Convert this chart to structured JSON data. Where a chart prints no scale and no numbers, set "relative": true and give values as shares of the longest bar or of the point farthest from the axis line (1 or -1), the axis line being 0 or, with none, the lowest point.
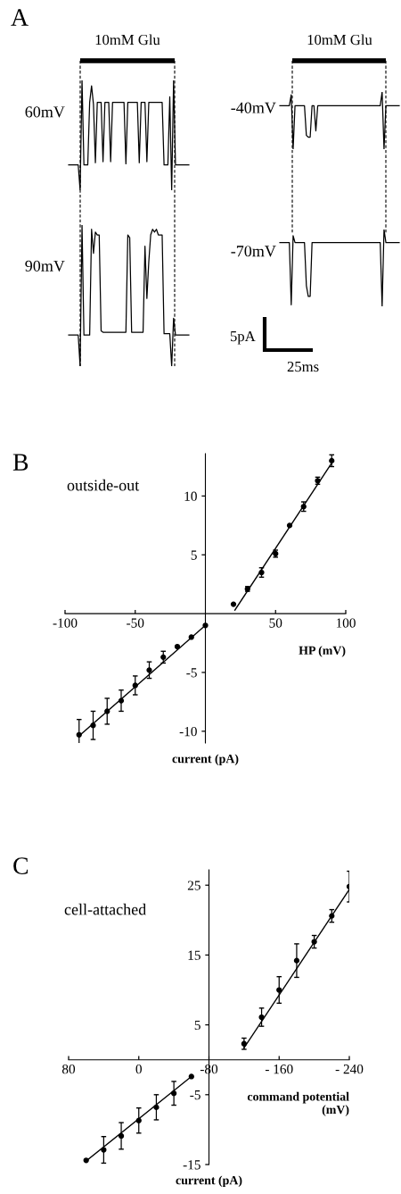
{
  "chart_data": [
    {
      "type": "line",
      "title": "A",
      "relative": true,
      "annotations": [
        "10mM Glu"
      ],
      "categories": [
        null,
        null,
        null,
        null,
        null,
        null,
        null,
        null,
        null,
        null,
        null,
        null,
        null,
        null,
        null,
        null,
        null,
        null,
        null,
        null,
        null,
        null,
        null,
        null,
        null,
        null,
        null,
        null,
        null,
        null,
        null,
        null,
        null,
        null,
        null,
        null,
        null,
        null,
        null,
        null,
        null,
        null,
        null,
        null,
        null,
        null,
        null,
        null,
        null,
        null,
        null,
        null,
        null,
        null,
        null,
        null,
        null,
        null,
        null,
        null,
        null,
        null,
        null,
        null
      ],
      "series": [
        {
          "name": "60mV",
          "color": "#000000",
          "values": [
            0.23,
            0.23,
            0.23,
            0.23,
            0.23,
            0.23,
            0.0,
            1.0,
            0.23,
            0.23,
            0.23,
            0.8,
            0.95,
            0.78,
            0.25,
            0.8,
            0.8,
            0.8,
            0.26,
            0.8,
            0.8,
            0.8,
            0.26,
            0.8,
            0.8,
            0.8,
            0.8,
            0.8,
            0.8,
            0.8,
            0.24,
            0.8,
            0.8,
            0.8,
            0.8,
            0.8,
            0.8,
            0.25,
            0.8,
            0.8,
            0.8,
            0.26,
            0.8,
            0.8,
            0.8,
            0.8,
            0.8,
            0.8,
            0.8,
            0.8,
            0.23,
            0.23,
            0.23,
            0.85,
            0.0,
            1.0,
            0.23,
            0.23,
            0.23,
            0.23,
            0.23,
            0.23,
            0.23,
            0.23
          ]
        }
      ]
    },
    {
      "type": "line",
      "relative": true,
      "categories": [
        null,
        null,
        null,
        null,
        null,
        null,
        null,
        null,
        null,
        null,
        null,
        null,
        null,
        null,
        null,
        null,
        null,
        null,
        null,
        null,
        null,
        null,
        null,
        null,
        null,
        null,
        null,
        null,
        null,
        null,
        null,
        null,
        null,
        null,
        null,
        null,
        null,
        null,
        null,
        null,
        null,
        null,
        null,
        null,
        null,
        null,
        null,
        null,
        null,
        null,
        null,
        null,
        null,
        null,
        null,
        null,
        null,
        null,
        null,
        null,
        null,
        null,
        null,
        null
      ],
      "series": [
        {
          "name": "90mV",
          "color": "#000000",
          "values": [
            0.22,
            0.22,
            0.22,
            0.22,
            0.22,
            0.22,
            0.0,
            1.0,
            0.22,
            0.22,
            0.22,
            0.22,
            0.97,
            0.8,
            0.95,
            0.93,
            0.93,
            0.25,
            0.24,
            0.24,
            0.24,
            0.24,
            0.24,
            0.24,
            0.24,
            0.24,
            0.24,
            0.24,
            0.24,
            0.24,
            0.24,
            0.93,
            0.91,
            0.24,
            0.24,
            0.24,
            0.24,
            0.24,
            0.24,
            0.24,
            0.85,
            0.48,
            0.74,
            0.93,
            0.97,
            0.95,
            0.97,
            0.93,
            0.93,
            0.93,
            0.23,
            0.23,
            0.23,
            0.23,
            0.0,
            0.34,
            0.22,
            0.22,
            0.22,
            0.22,
            0.22,
            0.22,
            0.22,
            0.22
          ]
        }
      ]
    },
    {
      "type": "line",
      "relative": true,
      "annotations": [
        "10mM Glu"
      ],
      "categories": [
        null,
        null,
        null,
        null,
        null,
        null,
        null,
        null,
        null,
        null,
        null,
        null,
        null,
        null,
        null,
        null,
        null,
        null,
        null,
        null,
        null,
        null,
        null,
        null,
        null,
        null,
        null,
        null,
        null,
        null,
        null,
        null,
        null,
        null,
        null,
        null,
        null,
        null,
        null,
        null,
        null,
        null,
        null,
        null,
        null,
        null,
        null,
        null,
        null,
        null,
        null,
        null,
        null,
        null,
        null,
        null,
        null,
        null,
        null,
        null,
        null,
        null,
        null,
        null
      ],
      "series": [
        {
          "name": "-40mV",
          "color": "#000000",
          "values": [
            0.76,
            0.76,
            0.76,
            0.76,
            0.76,
            0.76,
            0.95,
            0.0,
            0.76,
            0.76,
            0.76,
            0.76,
            0.76,
            0.76,
            0.24,
            0.21,
            0.21,
            0.76,
            0.76,
            0.32,
            0.76,
            0.76,
            0.76,
            0.76,
            0.76,
            0.76,
            0.76,
            0.76,
            0.76,
            0.76,
            0.76,
            0.76,
            0.76,
            0.76,
            0.76,
            0.76,
            0.76,
            0.76,
            0.76,
            0.76,
            0.76,
            0.76,
            0.76,
            0.76,
            0.76,
            0.76,
            0.76,
            0.76,
            0.76,
            0.76,
            0.76,
            0.76,
            0.76,
            0.76,
            1.0,
            0.0,
            0.76,
            0.76,
            0.76,
            0.76,
            0.76,
            0.76,
            0.76,
            0.76
          ]
        }
      ]
    },
    {
      "type": "line",
      "relative": true,
      "annotations": [
        "5pA",
        "25ms"
      ],
      "categories": [
        null,
        null,
        null,
        null,
        null,
        null,
        null,
        null,
        null,
        null,
        null,
        null,
        null,
        null,
        null,
        null,
        null,
        null,
        null,
        null,
        null,
        null,
        null,
        null,
        null,
        null,
        null,
        null,
        null,
        null,
        null,
        null,
        null,
        null,
        null,
        null,
        null,
        null,
        null,
        null,
        null,
        null,
        null,
        null,
        null,
        null,
        null,
        null,
        null,
        null,
        null,
        null,
        null,
        null,
        null,
        null,
        null,
        null,
        null,
        null,
        null,
        null,
        null,
        null
      ],
      "series": [
        {
          "name": "-70mV",
          "color": "#000000",
          "values": [
            0.83,
            0.83,
            0.83,
            0.83,
            0.83,
            0.83,
            0.02,
            0.92,
            0.83,
            0.83,
            0.83,
            0.83,
            0.83,
            0.83,
            0.27,
            0.13,
            0.13,
            0.83,
            0.83,
            0.83,
            0.83,
            0.83,
            0.83,
            0.83,
            0.83,
            0.83,
            0.83,
            0.83,
            0.83,
            0.83,
            0.83,
            0.83,
            0.83,
            0.83,
            0.83,
            0.83,
            0.83,
            0.83,
            0.83,
            0.83,
            0.83,
            0.83,
            0.83,
            0.83,
            0.83,
            0.83,
            0.83,
            0.83,
            0.83,
            0.83,
            0.83,
            0.83,
            0.83,
            0.83,
            0.0,
            1.0,
            0.83,
            0.83,
            0.83,
            0.83,
            0.83,
            0.83,
            0.83,
            0.83
          ]
        }
      ]
    },
    {
      "type": "scatter",
      "title": "B",
      "annotations": [
        "outside-out",
        "current (pA)"
      ],
      "xlabel": "HP (mV)",
      "xlim": [
        -100,
        100
      ],
      "xticks": [
        -100,
        -50,
        50,
        100
      ],
      "ylim": [
        -11,
        13.6
      ],
      "yticks": [
        -10,
        -5,
        5,
        10
      ],
      "marker": "circle",
      "grid": false,
      "series": [
        {
          "color": "#000000",
          "x": [
            -90,
            -80,
            -70,
            -60,
            -50,
            -40,
            -30,
            -20,
            -10,
            0,
            20,
            30,
            40,
            50,
            60,
            70,
            80,
            90
          ],
          "values": [
            -10.3,
            -9.5,
            -8.3,
            -7.4,
            -6.1,
            -4.8,
            -3.7,
            -2.8,
            -2.0,
            -1.0,
            0.8,
            2.1,
            3.5,
            5.1,
            7.5,
            9.1,
            11.3,
            13.0
          ],
          "errors": [
            1.3,
            1.2,
            1.1,
            0.9,
            0.8,
            0.7,
            0.5,
            null,
            null,
            null,
            null,
            0.2,
            0.4,
            0.3,
            null,
            0.4,
            0.3,
            0.5
          ]
        },
        {
          "type": "line",
          "marker": "none",
          "color": "#000000",
          "x": [
            -90,
            0
          ],
          "values": [
            -10.4,
            -1.0
          ]
        },
        {
          "type": "line",
          "marker": "none",
          "color": "#000000",
          "x": [
            21,
            90
          ],
          "values": [
            0.3,
            12.8
          ]
        }
      ]
    },
    {
      "type": "scatter",
      "title": "C",
      "annotations": [
        "cell-attached",
        "current (pA)"
      ],
      "xlabel": "command potential\n(mV)",
      "xlim": [
        80,
        -240
      ],
      "xticks": [
        80,
        0,
        -80,
        {
          "value": -160,
          "label": "- 160"
        },
        {
          "value": -240,
          "label": "- 240"
        }
      ],
      "ylim": [
        -15,
        27.2
      ],
      "yticks": [
        25,
        15,
        5,
        -5,
        -15
      ],
      "marker": "circle",
      "grid": false,
      "series": [
        {
          "color": "#000000",
          "x": [
            60,
            40,
            20,
            0,
            -20,
            -40,
            -60,
            -120,
            -140,
            -160,
            -180,
            -200,
            -220,
            -240
          ],
          "values": [
            -14.4,
            -12.9,
            -10.9,
            -8.7,
            -6.8,
            -4.8,
            -2.4,
            2.3,
            6.1,
            10.0,
            14.2,
            16.9,
            20.6,
            24.8
          ],
          "errors": [
            null,
            1.9,
            1.9,
            1.8,
            1.8,
            1.7,
            null,
            0.8,
            1.3,
            1.9,
            2.4,
            0.9,
            0.9,
            2.2
          ]
        },
        {
          "type": "line",
          "marker": "none",
          "color": "#000000",
          "x": [
            61,
            -60
          ],
          "values": [
            -14.6,
            -2.4
          ]
        },
        {
          "type": "line",
          "marker": "none",
          "color": "#000000",
          "x": [
            -120,
            -240
          ],
          "values": [
            1.7,
            24.4
          ]
        }
      ]
    }
  ]
}
